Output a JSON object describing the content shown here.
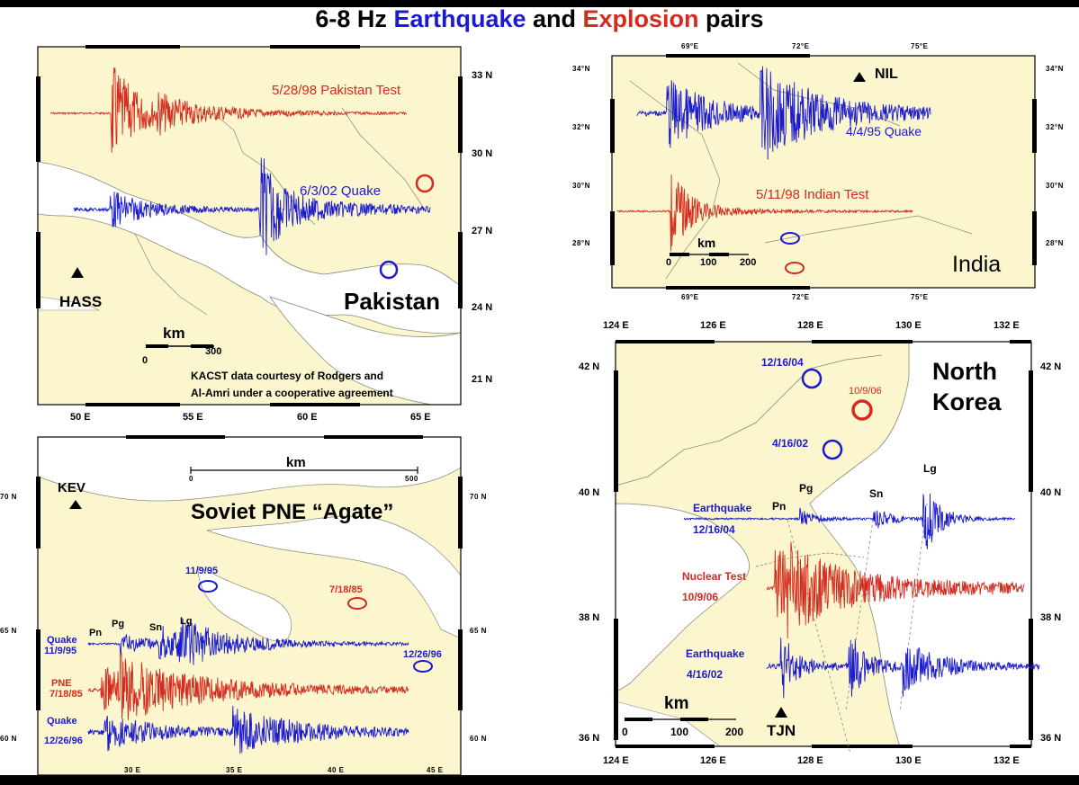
{
  "title": {
    "prefix": "6-8 Hz ",
    "earthquake": "Earthquake",
    "middle": " and ",
    "explosion": "Explosion",
    "suffix": " pairs"
  },
  "colors": {
    "earthquake": "#1a1ad0",
    "explosion": "#d52a1f",
    "land": "#fbf6cd",
    "water": "#ffffff"
  },
  "panels": {
    "pakistan": {
      "name": "Pakistan",
      "station": "HASS",
      "scale_label": "km",
      "scale_start": "0",
      "scale_end": "300",
      "credit_1": "KACST data courtesy of Rodgers and",
      "credit_2": "Al-Amri under a cooperative agreement",
      "explosion_label": "5/28/98 Pakistan Test",
      "quake_label": "6/3/02 Quake",
      "lat_ticks": [
        "33 N",
        "30 N",
        "27 N",
        "24 N",
        "21 N"
      ],
      "lon_ticks": [
        "50 E",
        "55 E",
        "60 E",
        "65 E"
      ]
    },
    "india": {
      "name": "India",
      "station": "NIL",
      "scale_label": "km",
      "scale_0": "0",
      "scale_100": "100",
      "scale_200": "200",
      "quake_label": "4/4/95 Quake",
      "explosion_label": "5/11/98 Indian Test",
      "lat_ticks": [
        "34°N",
        "32°N",
        "30°N",
        "28°N"
      ],
      "lon_ticks": [
        "69°E",
        "72°E",
        "75°E"
      ]
    },
    "soviet": {
      "name": "Soviet PNE “Agate”",
      "station": "KEV",
      "scale_label": "km",
      "scale_start": "0",
      "scale_end": "500",
      "event1_date": "11/9/95",
      "event2_date": "7/18/85",
      "event3_date": "12/26/96",
      "phase_pn": "Pn",
      "phase_pg": "Pg",
      "phase_sn": "Sn",
      "phase_lg": "Lg",
      "trace1_type": "Quake",
      "trace1_date": "11/9/95",
      "trace2_type": "PNE",
      "trace2_date": "7/18/85",
      "trace3_type": "Quake",
      "trace3_date": "12/26/96",
      "lat_ticks": [
        "70 N",
        "65 N",
        "60 N"
      ],
      "lon_ticks": [
        "30 E",
        "35 E",
        "40 E",
        "45 E"
      ]
    },
    "korea": {
      "name_1": "North",
      "name_2": "Korea",
      "station": "TJN",
      "scale_label": "km",
      "scale_0": "0",
      "scale_100": "100",
      "scale_200": "200",
      "event1_date": "12/16/04",
      "event2_date": "10/9/06",
      "event3_date": "4/16/02",
      "phase_pn": "Pn",
      "phase_pg": "Pg",
      "phase_sn": "Sn",
      "phase_lg": "Lg",
      "trace1_type": "Earthquake",
      "trace1_date": "12/16/04",
      "trace2_type": "Nuclear Test",
      "trace2_date": "10/9/06",
      "trace3_type": "Earthquake",
      "trace3_date": "4/16/02",
      "lat_ticks": [
        "42 N",
        "40 N",
        "38 N",
        "36 N"
      ],
      "lon_ticks": [
        "124 E",
        "126 E",
        "128 E",
        "130 E",
        "132 E"
      ]
    }
  }
}
